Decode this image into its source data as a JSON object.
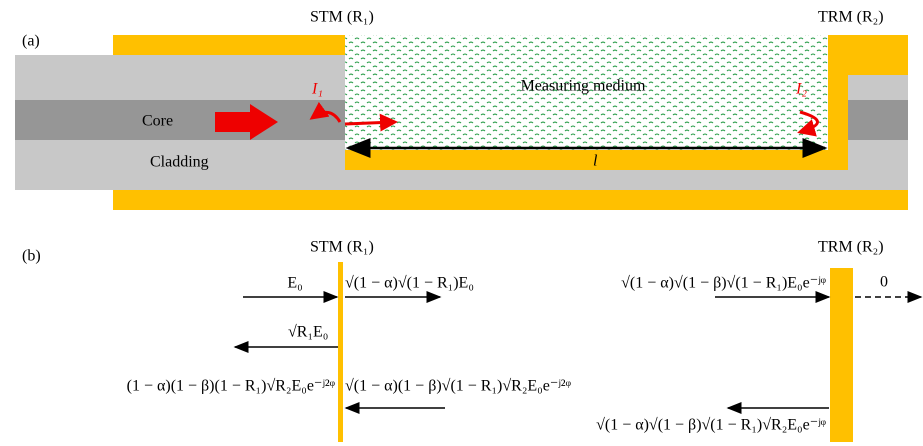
{
  "panel_a": {
    "label": "(a)",
    "stm": "STM (R₁)",
    "trm": "TRM (R₂)",
    "medium": "Measuring medium",
    "i1": "I₁",
    "i2": "I₂",
    "core": "Core",
    "cladding": "Cladding",
    "length": "l"
  },
  "panel_b": {
    "label": "(b)",
    "stm": "STM (R₁)",
    "trm": "TRM (R₂)",
    "incident": "E₀",
    "transmitted_stm": "√(1 − α)√(1 − R₁)E₀",
    "reflected_stm": "√R₁E₀",
    "output": "(1 − α)(1 − β)(1 − R₁)√R₂E₀e⁻ʲ²ᵠ",
    "returning": "√(1 − α)(1 − β)√(1 − R₁)√R₂E₀e⁻ʲ²ᵠ",
    "arriving_trm": "√(1 − α)√(1 − β)√(1 − R₁)E₀e⁻ʲᵠ",
    "transmitted_trm": "0",
    "reflected_trm": "√(1 − α)√(1 − β)√(1 − R₁)√R₂E₀e⁻ʲᵠ"
  }
}
